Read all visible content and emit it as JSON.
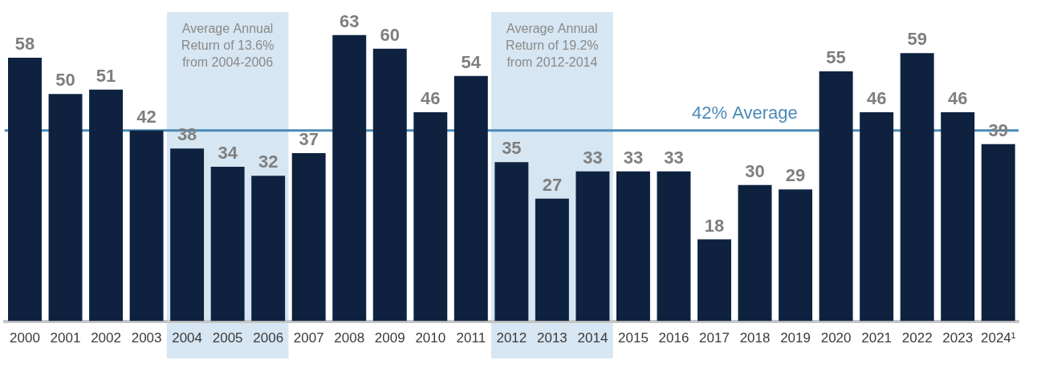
{
  "chart_data": {
    "type": "bar",
    "categories": [
      "2000",
      "2001",
      "2002",
      "2003",
      "2004",
      "2005",
      "2006",
      "2007",
      "2008",
      "2009",
      "2010",
      "2011",
      "2012",
      "2013",
      "2014",
      "2015",
      "2016",
      "2017",
      "2018",
      "2019",
      "2020",
      "2021",
      "2022",
      "2023",
      "2024¹"
    ],
    "values": [
      58,
      50,
      51,
      42,
      38,
      34,
      32,
      37,
      63,
      60,
      46,
      54,
      35,
      27,
      33,
      33,
      33,
      18,
      30,
      29,
      55,
      46,
      59,
      46,
      39
    ],
    "color": "#0e2240",
    "ylim": [
      0,
      70
    ],
    "grid": false,
    "data_labels": true,
    "tick_labels": "x",
    "annotations": {
      "average_line": {
        "value": 42,
        "label": "42% Average",
        "color": "#4a8ab8"
      },
      "highlights": [
        {
          "from": "2004",
          "to": "2006",
          "text": [
            "Average Annual",
            "Return of 13.6%",
            "from 2004-2006"
          ],
          "color": "#d6e6f2"
        },
        {
          "from": "2012",
          "to": "2014",
          "text": [
            "Average Annual",
            "Return of 19.2%",
            "from 2012-2014"
          ],
          "color": "#d6e6f2"
        }
      ]
    }
  }
}
